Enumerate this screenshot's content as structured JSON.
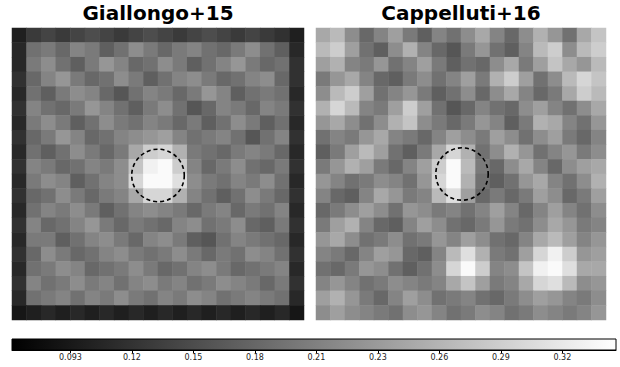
{
  "chart_data": {
    "type": "heatmap",
    "panels": [
      {
        "title": "Giallongo+15",
        "tick_labels": false,
        "circle": {
          "x": 10.0,
          "y": 10.1,
          "r": 1.8
        },
        "cells": [
          [
            0.1,
            0.13,
            0.14,
            0.13,
            0.14,
            0.15,
            0.14,
            0.13,
            0.14,
            0.15,
            0.14,
            0.13,
            0.14,
            0.15,
            0.14,
            0.13,
            0.14,
            0.13,
            0.12,
            0.1
          ],
          [
            0.11,
            0.19,
            0.2,
            0.18,
            0.21,
            0.2,
            0.17,
            0.19,
            0.22,
            0.2,
            0.18,
            0.2,
            0.21,
            0.19,
            0.18,
            0.2,
            0.22,
            0.19,
            0.17,
            0.11
          ],
          [
            0.11,
            0.2,
            0.22,
            0.19,
            0.17,
            0.2,
            0.23,
            0.21,
            0.18,
            0.19,
            0.22,
            0.2,
            0.17,
            0.19,
            0.21,
            0.23,
            0.2,
            0.18,
            0.19,
            0.12
          ],
          [
            0.12,
            0.18,
            0.21,
            0.23,
            0.2,
            0.18,
            0.19,
            0.22,
            0.2,
            0.17,
            0.19,
            0.21,
            0.22,
            0.2,
            0.18,
            0.19,
            0.21,
            0.22,
            0.18,
            0.12
          ],
          [
            0.11,
            0.19,
            0.17,
            0.2,
            0.22,
            0.21,
            0.18,
            0.16,
            0.19,
            0.21,
            0.2,
            0.18,
            0.2,
            0.23,
            0.21,
            0.17,
            0.19,
            0.2,
            0.19,
            0.11
          ],
          [
            0.12,
            0.21,
            0.19,
            0.18,
            0.2,
            0.23,
            0.21,
            0.19,
            0.17,
            0.2,
            0.22,
            0.19,
            0.16,
            0.18,
            0.21,
            0.2,
            0.18,
            0.21,
            0.2,
            0.12
          ],
          [
            0.11,
            0.2,
            0.22,
            0.2,
            0.17,
            0.19,
            0.22,
            0.2,
            0.19,
            0.21,
            0.2,
            0.18,
            0.2,
            0.17,
            0.19,
            0.22,
            0.2,
            0.17,
            0.19,
            0.11
          ],
          [
            0.12,
            0.18,
            0.2,
            0.23,
            0.21,
            0.18,
            0.19,
            0.21,
            0.22,
            0.23,
            0.24,
            0.21,
            0.19,
            0.2,
            0.21,
            0.19,
            0.16,
            0.19,
            0.21,
            0.12
          ],
          [
            0.11,
            0.19,
            0.17,
            0.19,
            0.22,
            0.2,
            0.18,
            0.2,
            0.25,
            0.29,
            0.3,
            0.26,
            0.2,
            0.19,
            0.18,
            0.2,
            0.21,
            0.2,
            0.18,
            0.11
          ],
          [
            0.12,
            0.21,
            0.2,
            0.18,
            0.19,
            0.21,
            0.2,
            0.22,
            0.28,
            0.33,
            0.34,
            0.29,
            0.21,
            0.18,
            0.2,
            0.22,
            0.19,
            0.18,
            0.2,
            0.12
          ],
          [
            0.11,
            0.2,
            0.22,
            0.21,
            0.17,
            0.19,
            0.21,
            0.22,
            0.3,
            0.34,
            0.34,
            0.31,
            0.22,
            0.2,
            0.19,
            0.21,
            0.2,
            0.22,
            0.19,
            0.11
          ],
          [
            0.12,
            0.18,
            0.19,
            0.22,
            0.2,
            0.18,
            0.2,
            0.21,
            0.25,
            0.3,
            0.3,
            0.26,
            0.21,
            0.19,
            0.17,
            0.19,
            0.22,
            0.2,
            0.18,
            0.12
          ],
          [
            0.11,
            0.19,
            0.21,
            0.2,
            0.22,
            0.2,
            0.17,
            0.19,
            0.21,
            0.22,
            0.21,
            0.2,
            0.18,
            0.2,
            0.21,
            0.18,
            0.2,
            0.19,
            0.21,
            0.11
          ],
          [
            0.12,
            0.21,
            0.18,
            0.19,
            0.21,
            0.23,
            0.2,
            0.18,
            0.2,
            0.19,
            0.18,
            0.21,
            0.22,
            0.19,
            0.2,
            0.22,
            0.18,
            0.17,
            0.2,
            0.12
          ],
          [
            0.11,
            0.2,
            0.2,
            0.17,
            0.19,
            0.21,
            0.22,
            0.2,
            0.18,
            0.21,
            0.22,
            0.2,
            0.17,
            0.16,
            0.19,
            0.21,
            0.2,
            0.19,
            0.18,
            0.11
          ],
          [
            0.12,
            0.18,
            0.22,
            0.2,
            0.18,
            0.19,
            0.21,
            0.22,
            0.2,
            0.19,
            0.2,
            0.22,
            0.2,
            0.18,
            0.2,
            0.19,
            0.22,
            0.21,
            0.19,
            0.12
          ],
          [
            0.11,
            0.19,
            0.2,
            0.22,
            0.21,
            0.18,
            0.19,
            0.2,
            0.22,
            0.2,
            0.18,
            0.19,
            0.21,
            0.22,
            0.2,
            0.18,
            0.19,
            0.2,
            0.21,
            0.11
          ],
          [
            0.12,
            0.21,
            0.19,
            0.2,
            0.22,
            0.2,
            0.21,
            0.19,
            0.21,
            0.22,
            0.2,
            0.21,
            0.19,
            0.2,
            0.22,
            0.21,
            0.2,
            0.18,
            0.2,
            0.12
          ],
          [
            0.11,
            0.19,
            0.2,
            0.21,
            0.19,
            0.21,
            0.2,
            0.22,
            0.2,
            0.19,
            0.21,
            0.2,
            0.22,
            0.21,
            0.19,
            0.2,
            0.21,
            0.2,
            0.19,
            0.11
          ],
          [
            0.09,
            0.1,
            0.11,
            0.1,
            0.11,
            0.1,
            0.11,
            0.1,
            0.11,
            0.1,
            0.11,
            0.1,
            0.11,
            0.1,
            0.11,
            0.1,
            0.11,
            0.1,
            0.11,
            0.09
          ]
        ]
      },
      {
        "title": "Cappelluti+16",
        "tick_labels": false,
        "circle": {
          "x": 10.07,
          "y": 10.0,
          "r": 1.8
        },
        "cells": [
          [
            0.25,
            0.27,
            0.22,
            0.18,
            0.21,
            0.24,
            0.2,
            0.17,
            0.21,
            0.19,
            0.22,
            0.25,
            0.21,
            0.18,
            0.22,
            0.26,
            0.23,
            0.19,
            0.25,
            0.28
          ],
          [
            0.27,
            0.29,
            0.24,
            0.19,
            0.17,
            0.22,
            0.26,
            0.21,
            0.18,
            0.16,
            0.2,
            0.23,
            0.19,
            0.17,
            0.21,
            0.27,
            0.29,
            0.22,
            0.27,
            0.29
          ],
          [
            0.24,
            0.26,
            0.21,
            0.2,
            0.23,
            0.19,
            0.21,
            0.24,
            0.2,
            0.17,
            0.19,
            0.18,
            0.22,
            0.25,
            0.2,
            0.24,
            0.28,
            0.25,
            0.23,
            0.27
          ],
          [
            0.2,
            0.23,
            0.25,
            0.21,
            0.18,
            0.17,
            0.2,
            0.22,
            0.19,
            0.21,
            0.24,
            0.2,
            0.26,
            0.29,
            0.24,
            0.19,
            0.22,
            0.27,
            0.3,
            0.28
          ],
          [
            0.22,
            0.27,
            0.29,
            0.24,
            0.19,
            0.21,
            0.23,
            0.2,
            0.17,
            0.19,
            0.22,
            0.18,
            0.22,
            0.25,
            0.21,
            0.18,
            0.2,
            0.25,
            0.29,
            0.27
          ],
          [
            0.26,
            0.3,
            0.27,
            0.21,
            0.2,
            0.24,
            0.29,
            0.24,
            0.19,
            0.16,
            0.18,
            0.21,
            0.19,
            0.18,
            0.22,
            0.24,
            0.21,
            0.19,
            0.22,
            0.25
          ],
          [
            0.23,
            0.25,
            0.22,
            0.19,
            0.22,
            0.26,
            0.28,
            0.22,
            0.2,
            0.18,
            0.2,
            0.23,
            0.21,
            0.17,
            0.2,
            0.26,
            0.25,
            0.21,
            0.19,
            0.23
          ],
          [
            0.19,
            0.21,
            0.2,
            0.23,
            0.25,
            0.21,
            0.2,
            0.18,
            0.21,
            0.24,
            0.22,
            0.2,
            0.24,
            0.22,
            0.19,
            0.22,
            0.24,
            0.2,
            0.18,
            0.21
          ],
          [
            0.17,
            0.2,
            0.24,
            0.27,
            0.24,
            0.19,
            0.17,
            0.2,
            0.25,
            0.3,
            0.26,
            0.19,
            0.22,
            0.26,
            0.23,
            0.19,
            0.21,
            0.23,
            0.2,
            0.22
          ],
          [
            0.2,
            0.23,
            0.26,
            0.24,
            0.2,
            0.18,
            0.21,
            0.24,
            0.29,
            0.34,
            0.27,
            0.2,
            0.18,
            0.22,
            0.25,
            0.21,
            0.18,
            0.22,
            0.24,
            0.25
          ],
          [
            0.23,
            0.21,
            0.19,
            0.2,
            0.22,
            0.21,
            0.19,
            0.23,
            0.3,
            0.34,
            0.26,
            0.19,
            0.17,
            0.19,
            0.23,
            0.25,
            0.21,
            0.19,
            0.22,
            0.26
          ],
          [
            0.21,
            0.18,
            0.17,
            0.21,
            0.25,
            0.23,
            0.2,
            0.21,
            0.27,
            0.31,
            0.24,
            0.18,
            0.2,
            0.18,
            0.2,
            0.24,
            0.22,
            0.18,
            0.2,
            0.24
          ],
          [
            0.18,
            0.2,
            0.22,
            0.24,
            0.22,
            0.19,
            0.23,
            0.22,
            0.2,
            0.21,
            0.19,
            0.21,
            0.24,
            0.21,
            0.18,
            0.21,
            0.24,
            0.21,
            0.19,
            0.22
          ],
          [
            0.2,
            0.24,
            0.26,
            0.21,
            0.18,
            0.17,
            0.21,
            0.24,
            0.22,
            0.19,
            0.18,
            0.2,
            0.23,
            0.2,
            0.19,
            0.22,
            0.25,
            0.23,
            0.2,
            0.21
          ],
          [
            0.23,
            0.25,
            0.22,
            0.19,
            0.2,
            0.22,
            0.19,
            0.2,
            0.23,
            0.21,
            0.24,
            0.22,
            0.19,
            0.18,
            0.21,
            0.25,
            0.27,
            0.24,
            0.21,
            0.23
          ],
          [
            0.21,
            0.2,
            0.18,
            0.21,
            0.24,
            0.23,
            0.18,
            0.17,
            0.21,
            0.27,
            0.31,
            0.26,
            0.2,
            0.19,
            0.24,
            0.3,
            0.33,
            0.29,
            0.23,
            0.24
          ],
          [
            0.19,
            0.18,
            0.2,
            0.23,
            0.22,
            0.19,
            0.17,
            0.19,
            0.22,
            0.3,
            0.34,
            0.29,
            0.21,
            0.22,
            0.28,
            0.33,
            0.34,
            0.31,
            0.25,
            0.25
          ],
          [
            0.21,
            0.23,
            0.21,
            0.19,
            0.2,
            0.22,
            0.21,
            0.2,
            0.21,
            0.25,
            0.28,
            0.24,
            0.2,
            0.21,
            0.25,
            0.3,
            0.31,
            0.27,
            0.22,
            0.23
          ],
          [
            0.24,
            0.26,
            0.23,
            0.2,
            0.18,
            0.21,
            0.24,
            0.22,
            0.19,
            0.2,
            0.21,
            0.19,
            0.18,
            0.2,
            0.22,
            0.24,
            0.23,
            0.21,
            0.2,
            0.22
          ],
          [
            0.22,
            0.24,
            0.22,
            0.21,
            0.2,
            0.19,
            0.22,
            0.23,
            0.21,
            0.19,
            0.2,
            0.22,
            0.21,
            0.19,
            0.2,
            0.22,
            0.21,
            0.2,
            0.21,
            0.23
          ]
        ]
      }
    ],
    "colorbar": {
      "range": [
        0.066,
        0.345
      ],
      "ticks": [
        0.093,
        {
          "value": 0.1214,
          "label": "0.12"
        },
        {
          "value": 0.1498,
          "label": "0.15"
        },
        {
          "value": 0.1782,
          "label": "0.18"
        },
        {
          "value": 0.2066,
          "label": "0.21"
        },
        {
          "value": 0.235,
          "label": "0.23"
        },
        {
          "value": 0.2634,
          "label": "0.26"
        },
        {
          "value": 0.2918,
          "label": "0.29"
        },
        {
          "value": 0.3202,
          "label": "0.32"
        }
      ]
    }
  }
}
